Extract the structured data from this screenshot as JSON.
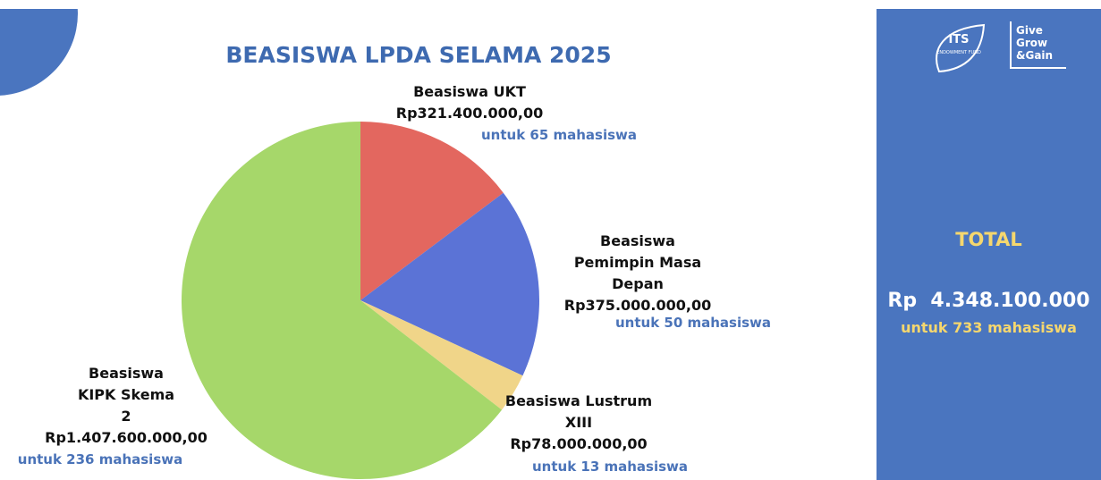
{
  "chart_data": {
    "type": "pie",
    "title": "BEASISWA LPDA SELAMA 2025",
    "categories": [
      "Beasiswa UKT",
      "Beasiswa Pemimpin Masa Depan",
      "Beasiswa Lustrum XIII",
      "Beasiswa KIPK Skema 2"
    ],
    "values": [
      321400000,
      375000000,
      78000000,
      1407600000
    ],
    "value_labels": [
      "Rp321.400.000,00",
      "Rp375.000.000,00",
      "Rp78.000.000,00",
      "Rp1.407.600.000,00"
    ],
    "annotations": [
      "untuk 65 mahasiswa",
      "untuk 50 mahasiswa",
      "untuk 13 mahasiswa",
      "untuk 236 mahasiswa"
    ],
    "colors": [
      "#e3675f",
      "#5b73d6",
      "#f0d589",
      "#a6d76a"
    ]
  },
  "total": {
    "label": "TOTAL",
    "value": "Rp  4.348.100.000",
    "note": "untuk 733 mahasiswa"
  },
  "logos": {
    "its": "ITS",
    "its_sub": "ENDOWMENT FUND",
    "give": [
      "Give",
      "Grow",
      "&Gain"
    ]
  }
}
